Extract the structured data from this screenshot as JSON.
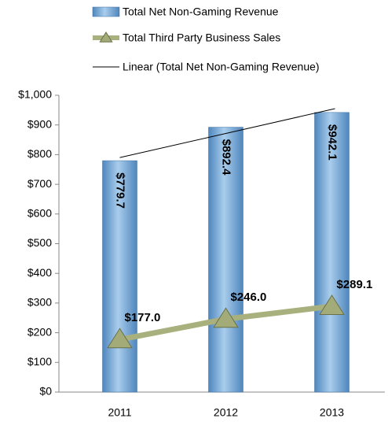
{
  "chart_data": {
    "type": "bar",
    "categories": [
      "2011",
      "2012",
      "2013"
    ],
    "series": [
      {
        "name": "Total Net Non-Gaming Revenue",
        "type": "bar",
        "color": "#7fb0dc",
        "values": [
          779.7,
          892.4,
          942.1
        ],
        "value_labels": [
          "$779.7",
          "$892.4",
          "$942.1"
        ]
      },
      {
        "name": "Total Third Party Business Sales",
        "type": "line",
        "color": "#a8b07e",
        "values": [
          177.0,
          246.0,
          289.1
        ],
        "value_labels": [
          "$177.0",
          "$246.0",
          "$289.1"
        ]
      }
    ],
    "trendline": {
      "name": "Linear (Total Net Non-Gaming Revenue)",
      "series": 0,
      "color": "#000000"
    },
    "ylim": [
      0,
      1000
    ],
    "yticks": [
      {
        "value": 0,
        "label": "$0"
      },
      {
        "value": 100,
        "label": "$100"
      },
      {
        "value": 200,
        "label": "$200"
      },
      {
        "value": 300,
        "label": "$300"
      },
      {
        "value": 400,
        "label": "$400"
      },
      {
        "value": 500,
        "label": "$500"
      },
      {
        "value": 600,
        "label": "$600"
      },
      {
        "value": 700,
        "label": "$700"
      },
      {
        "value": 800,
        "label": "$800"
      },
      {
        "value": 900,
        "label": "$900"
      },
      {
        "value": 1000,
        "label": "$1,000"
      }
    ]
  }
}
